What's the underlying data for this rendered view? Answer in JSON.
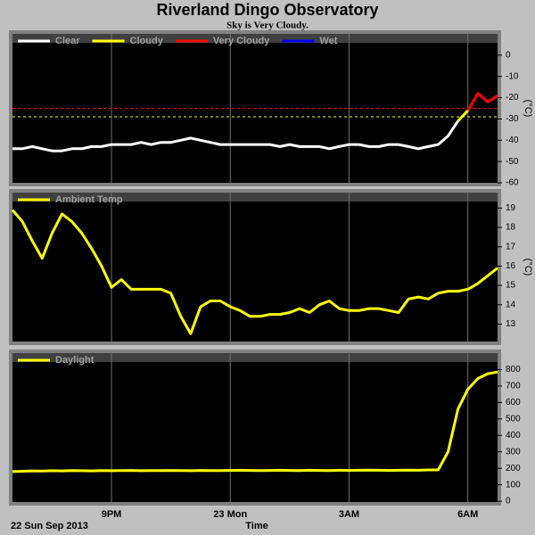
{
  "chart_data": [
    {
      "type": "line",
      "title": "Riverland Dingo Observatory",
      "subtitle": "Sky is Very Cloudy.",
      "ylabel": "(°C)",
      "x": [
        18.5,
        18.75,
        19,
        19.25,
        19.5,
        19.75,
        20,
        20.25,
        20.5,
        20.75,
        21,
        21.25,
        21.5,
        21.75,
        22,
        22.25,
        22.5,
        22.75,
        23,
        23.25,
        23.5,
        23.75,
        24,
        24.25,
        24.5,
        24.75,
        25,
        25.25,
        25.5,
        25.75,
        26,
        26.25,
        26.5,
        26.75,
        27,
        27.25,
        27.5,
        27.75,
        28,
        28.25,
        28.5,
        28.75,
        29,
        29.25,
        29.5,
        29.75,
        30,
        30.25,
        30.5,
        30.75
      ],
      "series": [
        {
          "name": "Clear",
          "color": "#ffffff",
          "values": [
            -44,
            -44,
            -43,
            -44,
            -45,
            -45,
            -44,
            -44,
            -43,
            -43,
            -42,
            -42,
            -42,
            -41,
            -42,
            -41,
            -41,
            -40,
            -39,
            -40,
            -41,
            -42,
            -42,
            -42,
            -42,
            -42,
            -42,
            -43,
            -42,
            -43,
            -43,
            -43,
            -44,
            -43,
            -42,
            -42,
            -43,
            -43,
            -42,
            -42,
            -43,
            -44,
            -43,
            -42,
            -38,
            -31,
            null,
            null,
            null,
            null
          ]
        },
        {
          "name": "Cloudy",
          "color": "#ffff00",
          "values": [
            null,
            null,
            null,
            null,
            null,
            null,
            null,
            null,
            null,
            null,
            null,
            null,
            null,
            null,
            null,
            null,
            null,
            null,
            null,
            null,
            null,
            null,
            null,
            null,
            null,
            null,
            null,
            null,
            null,
            null,
            null,
            null,
            null,
            null,
            null,
            null,
            null,
            null,
            null,
            null,
            null,
            null,
            null,
            null,
            null,
            -31,
            -26,
            null,
            null,
            null
          ]
        },
        {
          "name": "Very Cloudy",
          "color": "#ff0000",
          "values": [
            null,
            null,
            null,
            null,
            null,
            null,
            null,
            null,
            null,
            null,
            null,
            null,
            null,
            null,
            null,
            null,
            null,
            null,
            null,
            null,
            null,
            null,
            null,
            null,
            null,
            null,
            null,
            null,
            null,
            null,
            null,
            null,
            null,
            null,
            null,
            null,
            null,
            null,
            null,
            null,
            null,
            null,
            null,
            null,
            null,
            null,
            -26,
            -18,
            -22,
            -19
          ]
        },
        {
          "name": "Wet",
          "color": "#0000ff",
          "values": [
            null,
            null,
            null,
            null,
            null,
            null,
            null,
            null,
            null,
            null,
            null,
            null,
            null,
            null,
            null,
            null,
            null,
            null,
            null,
            null,
            null,
            null,
            null,
            null,
            null,
            null,
            null,
            null,
            null,
            null,
            null,
            null,
            null,
            null,
            null,
            null,
            null,
            null,
            null,
            null,
            null,
            null,
            null,
            null,
            null,
            null,
            null,
            null,
            null,
            null
          ]
        }
      ],
      "thresholds": [
        {
          "value": -25,
          "color": "#ff0000"
        },
        {
          "value": -29,
          "color": "#ffff00"
        }
      ],
      "xlim": [
        18.5,
        30.75
      ],
      "xticks": [
        21,
        24,
        27,
        30
      ],
      "ylim": [
        -60,
        10
      ],
      "yticks": [
        0,
        -10,
        -20,
        -30,
        -40,
        -50,
        -60
      ]
    },
    {
      "type": "line",
      "ylabel": "(°C)",
      "x": [
        18.5,
        18.75,
        19,
        19.25,
        19.5,
        19.75,
        20,
        20.25,
        20.5,
        20.75,
        21,
        21.25,
        21.5,
        21.75,
        22,
        22.25,
        22.5,
        22.75,
        23,
        23.25,
        23.5,
        23.75,
        24,
        24.25,
        24.5,
        24.75,
        25,
        25.25,
        25.5,
        25.75,
        26,
        26.25,
        26.5,
        26.75,
        27,
        27.25,
        27.5,
        27.75,
        28,
        28.25,
        28.5,
        28.75,
        29,
        29.25,
        29.5,
        29.75,
        30,
        30.25,
        30.5,
        30.75
      ],
      "series": [
        {
          "name": "Ambient Temp",
          "color": "#ffff00",
          "values": [
            18.9,
            18.3,
            17.3,
            16.4,
            17.7,
            18.7,
            18.3,
            17.7,
            16.9,
            16.0,
            14.9,
            15.3,
            14.8,
            14.8,
            14.8,
            14.8,
            14.6,
            13.4,
            12.5,
            13.9,
            14.2,
            14.2,
            13.9,
            13.7,
            13.4,
            13.4,
            13.5,
            13.5,
            13.6,
            13.8,
            13.6,
            14.0,
            14.2,
            13.8,
            13.7,
            13.7,
            13.8,
            13.8,
            13.7,
            13.6,
            14.3,
            14.4,
            14.3,
            14.6,
            14.7,
            14.7,
            14.8,
            15.1,
            15.5,
            15.9
          ]
        }
      ],
      "xlim": [
        18.5,
        30.75
      ],
      "xticks": [
        21,
        24,
        27,
        30
      ],
      "ylim": [
        12.1,
        19.8
      ],
      "yticks": [
        13,
        14,
        15,
        16,
        17,
        18,
        19
      ]
    },
    {
      "type": "line",
      "x_label": "Time",
      "date_label": "22 Sun Sep 2013",
      "x": [
        18.5,
        18.75,
        19,
        19.25,
        19.5,
        19.75,
        20,
        20.25,
        20.5,
        20.75,
        21,
        21.25,
        21.5,
        21.75,
        22,
        22.25,
        22.5,
        22.75,
        23,
        23.25,
        23.5,
        23.75,
        24,
        24.25,
        24.5,
        24.75,
        25,
        25.25,
        25.5,
        25.75,
        26,
        26.25,
        26.5,
        26.75,
        27,
        27.25,
        27.5,
        27.75,
        28,
        28.25,
        28.5,
        28.75,
        29,
        29.25,
        29.5,
        29.75,
        30,
        30.25,
        30.5,
        30.75
      ],
      "series": [
        {
          "name": "Daylight",
          "color": "#ffff00",
          "values": [
            180,
            182,
            184,
            183,
            185,
            184,
            186,
            185,
            184,
            186,
            185,
            186,
            187,
            185,
            186,
            186,
            187,
            186,
            185,
            187,
            186,
            186,
            187,
            188,
            187,
            186,
            187,
            188,
            187,
            186,
            188,
            187,
            186,
            188,
            187,
            188,
            189,
            188,
            187,
            188,
            189,
            188,
            190,
            190,
            300,
            560,
            680,
            745,
            775,
            785
          ]
        }
      ],
      "xlim": [
        18.5,
        30.75
      ],
      "xticks": [
        {
          "value": 21,
          "label": "9PM"
        },
        {
          "value": 24,
          "label": "23 Mon"
        },
        {
          "value": 27,
          "label": "3AM"
        },
        {
          "value": 30,
          "label": "6AM"
        }
      ],
      "ylim": [
        -5,
        900
      ],
      "yticks": [
        0,
        100,
        200,
        300,
        400,
        500,
        600,
        700,
        800
      ]
    }
  ]
}
